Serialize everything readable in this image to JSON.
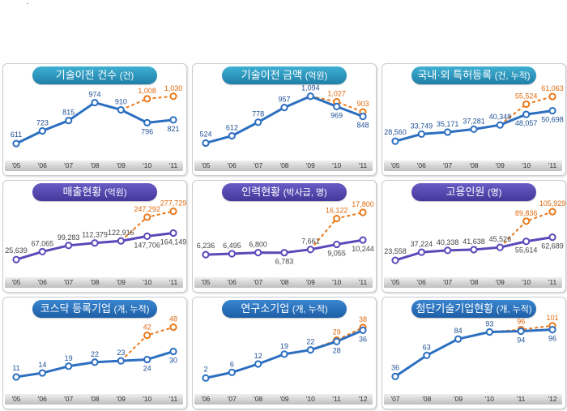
{
  "colors": {
    "actual_line": "#2c6fc0",
    "forecast_line": "#e87b1e",
    "purple_line": "#5a49b8",
    "label_blue": "#1f4f96",
    "label_orange": "#e06a10",
    "label_gray": "#444444"
  },
  "chart_data": [
    {
      "type": "line",
      "title": "기술이전 건수",
      "subtitle": "(건)",
      "title_style": "teal",
      "x": [
        "'05",
        "'06",
        "'07",
        "'08",
        "'09",
        "'10",
        "'11"
      ],
      "series": [
        {
          "kind": "actual",
          "values": [
            611,
            723,
            815,
            974,
            910,
            796,
            821
          ]
        },
        {
          "kind": "forecast",
          "x": [
            "'09",
            "'10",
            "'11"
          ],
          "values": [
            910,
            1008,
            1030
          ]
        }
      ],
      "ylim": [
        540,
        1100
      ]
    },
    {
      "type": "line",
      "title": "기술이전 금액",
      "subtitle": "(억원)",
      "title_style": "teal",
      "x": [
        "'05",
        "'06",
        "'07",
        "'08",
        "'09",
        "'10",
        "'11"
      ],
      "series": [
        {
          "kind": "actual",
          "values": [
            524,
            612,
            778,
            957,
            1094,
            969,
            848
          ]
        },
        {
          "kind": "forecast",
          "x": [
            "'09",
            "'10",
            "'11"
          ],
          "values": [
            1094,
            1027,
            903
          ]
        }
      ],
      "ylim": [
        420,
        1190
      ]
    },
    {
      "type": "line",
      "title": "국내·외 특허등록",
      "subtitle": "(건, 누적)",
      "title_style": "teal",
      "x": [
        "'05",
        "'06",
        "'07",
        "'08",
        "'09",
        "'10",
        "'11"
      ],
      "series": [
        {
          "kind": "actual",
          "values": [
            28560,
            33749,
            35171,
            37281,
            40348,
            48057,
            50698
          ]
        },
        {
          "kind": "forecast",
          "x": [
            "'09",
            "'10",
            "'11"
          ],
          "values": [
            40348,
            55524,
            61063
          ]
        }
      ],
      "ylim": [
        21000,
        67000
      ]
    },
    {
      "type": "line",
      "title": "매출현황",
      "subtitle": "(억원)",
      "title_style": "purple",
      "x": [
        "'05",
        "'06",
        "'07",
        "'08",
        "'09",
        "'10",
        "'11"
      ],
      "series": [
        {
          "kind": "actual",
          "values": [
            25639,
            67065,
            99283,
            112379,
            122916,
            147706,
            164149
          ]
        },
        {
          "kind": "forecast",
          "x": [
            "'09",
            "'10",
            "'11"
          ],
          "values": [
            122916,
            247292,
            277729
          ]
        }
      ],
      "ylim": [
        -20000,
        310000
      ]
    },
    {
      "type": "line",
      "title": "인력현황",
      "subtitle": "(박사급, 명)",
      "title_style": "purple",
      "x": [
        "'05",
        "'06",
        "'07",
        "'08",
        "'09",
        "'10",
        "'11"
      ],
      "series": [
        {
          "kind": "actual",
          "values": [
            6236,
            6495,
            6800,
            6783,
            7661,
            9055,
            10244
          ]
        },
        {
          "kind": "forecast",
          "x": [
            "'09",
            "'10",
            "'11"
          ],
          "values": [
            7661,
            16122,
            17800
          ]
        }
      ],
      "ylim": [
        2500,
        19800
      ]
    },
    {
      "type": "line",
      "title": "고용인원",
      "subtitle": "(명)",
      "title_style": "purple",
      "x": [
        "'05",
        "'06",
        "'07",
        "'08",
        "'09",
        "'10",
        "'11"
      ],
      "series": [
        {
          "kind": "actual",
          "values": [
            23558,
            37224,
            40338,
            41638,
            45526,
            55614,
            62689
          ]
        },
        {
          "kind": "forecast",
          "x": [
            "'09",
            "'10",
            "'11"
          ],
          "values": [
            45526,
            89836,
            105929
          ]
        }
      ],
      "ylim": [
        10000,
        117000
      ]
    },
    {
      "type": "line",
      "title": "코스닥 등록기업",
      "subtitle": "(개, 누적)",
      "title_style": "blue",
      "x": [
        "'05",
        "'06",
        "'07",
        "'08",
        "'09",
        "'10",
        "'11"
      ],
      "series": [
        {
          "kind": "actual",
          "values": [
            11,
            14,
            19,
            22,
            23,
            24,
            30
          ]
        },
        {
          "kind": "forecast",
          "x": [
            "'09",
            "'10",
            "'11"
          ],
          "values": [
            23,
            42,
            48
          ]
        }
      ],
      "ylim": [
        5,
        52
      ]
    },
    {
      "type": "line",
      "title": "연구소기업",
      "subtitle": "(개, 누적)",
      "title_style": "blue",
      "x": [
        "'06",
        "'07",
        "'08",
        "'09",
        "'10",
        "'11",
        "'12"
      ],
      "series": [
        {
          "kind": "actual",
          "values": [
            2,
            6,
            12,
            19,
            22,
            28,
            36
          ]
        },
        {
          "kind": "forecast",
          "x": [
            "'10",
            "'11",
            "'12"
          ],
          "values": [
            22,
            29,
            38
          ]
        }
      ],
      "ylim": [
        -3,
        42
      ]
    },
    {
      "type": "line",
      "title": "첨단기술기업현황",
      "subtitle": "(개, 누적)",
      "title_style": "blue",
      "x": [
        "'07",
        "'08",
        "'09",
        "'10",
        "'11",
        "'12"
      ],
      "series": [
        {
          "kind": "actual",
          "values": [
            36,
            63,
            84,
            93,
            94,
            96
          ]
        },
        {
          "kind": "forecast",
          "x": [
            "'10",
            "'11",
            "'12"
          ],
          "values": [
            93,
            96,
            101
          ]
        }
      ],
      "ylim": [
        25,
        106
      ]
    }
  ]
}
